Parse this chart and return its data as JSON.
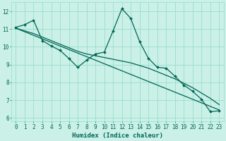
{
  "xlabel": "Humidex (Indice chaleur)",
  "bg_color": "#caf0e8",
  "line_color": "#006655",
  "grid_color": "#99ddcc",
  "y_jagged": [
    11.1,
    11.25,
    11.5,
    10.35,
    10.05,
    9.8,
    9.35,
    8.85,
    9.25,
    9.6,
    9.7,
    10.9,
    12.15,
    11.6,
    10.3,
    9.35,
    8.85,
    8.8,
    8.35,
    7.85,
    7.5,
    7.05,
    6.35,
    6.4
  ],
  "y_smooth": [
    11.05,
    10.9,
    10.75,
    10.55,
    10.35,
    10.15,
    9.95,
    9.75,
    9.6,
    9.5,
    9.4,
    9.3,
    9.2,
    9.1,
    8.95,
    8.8,
    8.6,
    8.4,
    8.2,
    7.95,
    7.7,
    7.4,
    7.1,
    6.75
  ],
  "y_regr_start": 11.05,
  "y_regr_end": 6.45,
  "xlim": [
    -0.5,
    23.5
  ],
  "ylim": [
    5.8,
    12.5
  ],
  "yticks": [
    6,
    7,
    8,
    9,
    10,
    11,
    12
  ],
  "xticks": [
    0,
    1,
    2,
    3,
    4,
    5,
    6,
    7,
    8,
    9,
    10,
    11,
    12,
    13,
    14,
    15,
    16,
    17,
    18,
    19,
    20,
    21,
    22,
    23
  ]
}
